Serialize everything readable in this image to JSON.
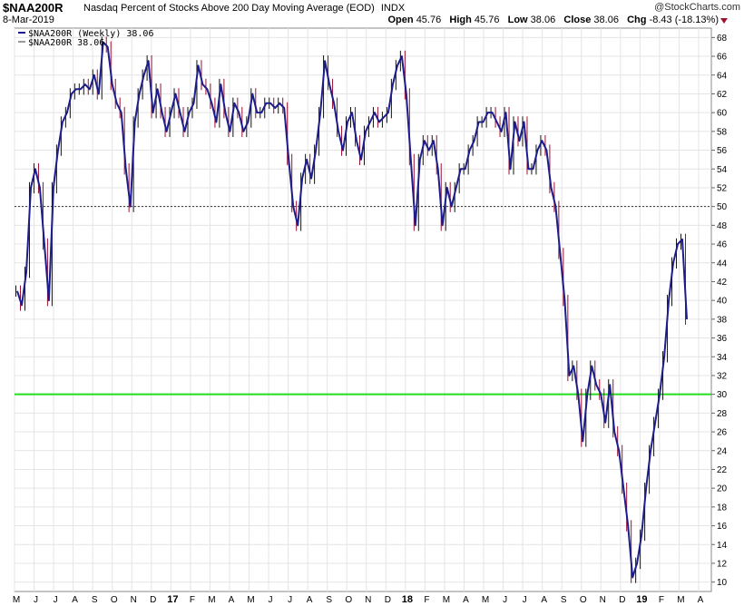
{
  "header": {
    "symbol": "$NAA200R",
    "description": "Nasdaq Percent of Stocks Above 200 Day Moving Average (EOD)",
    "exchange": "INDX",
    "date": "8-Mar-2019",
    "copyright": "@StockCharts.com",
    "open_label": "Open",
    "open": "45.76",
    "high_label": "High",
    "high": "45.76",
    "low_label": "Low",
    "low": "38.06",
    "close_label": "Close",
    "close": "38.06",
    "chg_label": "Chg",
    "chg": "-8.43 (-18.13%)"
  },
  "chart_data": {
    "type": "line",
    "title": "$NAA200R Nasdaq Percent of Stocks Above 200 Day Moving Average (EOD)",
    "ylim": [
      9,
      69
    ],
    "yticks": [
      10,
      12,
      14,
      16,
      18,
      20,
      22,
      24,
      26,
      28,
      30,
      32,
      34,
      36,
      38,
      40,
      42,
      44,
      46,
      48,
      50,
      52,
      54,
      56,
      58,
      60,
      62,
      64,
      66,
      68
    ],
    "grid": true,
    "legend": [
      {
        "label": "$NAA200R (Weekly) 38.06",
        "color": "#1c1c8a"
      },
      {
        "label": "$NAA200R 38.06",
        "color": "#333333"
      }
    ],
    "reference_lines": [
      {
        "y": 50,
        "style": "dotted",
        "color": "#333333"
      },
      {
        "y": 30,
        "style": "solid",
        "color": "#22dd22"
      }
    ],
    "x_labels": [
      "M",
      "J",
      "J",
      "A",
      "S",
      "O",
      "N",
      "D",
      "17",
      "F",
      "M",
      "A",
      "M",
      "J",
      "J",
      "A",
      "S",
      "O",
      "N",
      "D",
      "18",
      "F",
      "M",
      "A",
      "M",
      "J",
      "J",
      "A",
      "S",
      "O",
      "N",
      "D",
      "19",
      "F",
      "M",
      "A"
    ],
    "x_label_bold": [
      "17",
      "18",
      "19"
    ],
    "series": [
      {
        "name": "$NAA200R (Weekly)",
        "values": [
          41,
          39.5,
          43,
          52,
          54,
          52,
          46,
          40,
          52,
          56,
          59,
          60,
          62,
          62.5,
          62.5,
          63,
          62.5,
          64,
          62,
          67.5,
          67,
          63,
          61,
          60,
          54,
          50,
          59,
          62,
          64,
          65.5,
          60,
          62.5,
          60,
          58,
          60,
          62,
          60,
          58,
          60,
          61,
          65,
          63,
          62.5,
          61,
          59,
          63,
          60,
          58,
          61,
          60,
          58,
          59,
          62,
          60,
          60,
          61,
          61,
          60.5,
          61,
          60.5,
          55,
          50,
          48,
          53,
          55,
          53,
          56,
          60,
          65.5,
          63,
          61,
          58,
          56,
          59,
          60,
          57,
          55,
          58,
          59,
          60,
          59,
          59.5,
          60,
          63,
          65,
          66,
          62,
          55,
          48,
          55,
          57,
          56,
          57,
          54,
          48,
          52,
          50,
          52,
          54,
          54,
          56,
          57,
          59,
          59,
          60,
          60,
          59,
          58,
          60,
          54,
          59,
          57,
          59,
          54,
          54,
          56,
          57,
          56,
          52,
          50,
          45,
          40,
          32,
          33,
          30,
          25,
          30,
          33,
          31,
          30,
          27,
          31,
          26,
          24,
          20,
          16,
          10.5,
          12,
          15,
          20,
          24,
          27,
          30,
          34,
          40,
          44,
          46,
          46.5,
          38
        ]
      }
    ]
  }
}
